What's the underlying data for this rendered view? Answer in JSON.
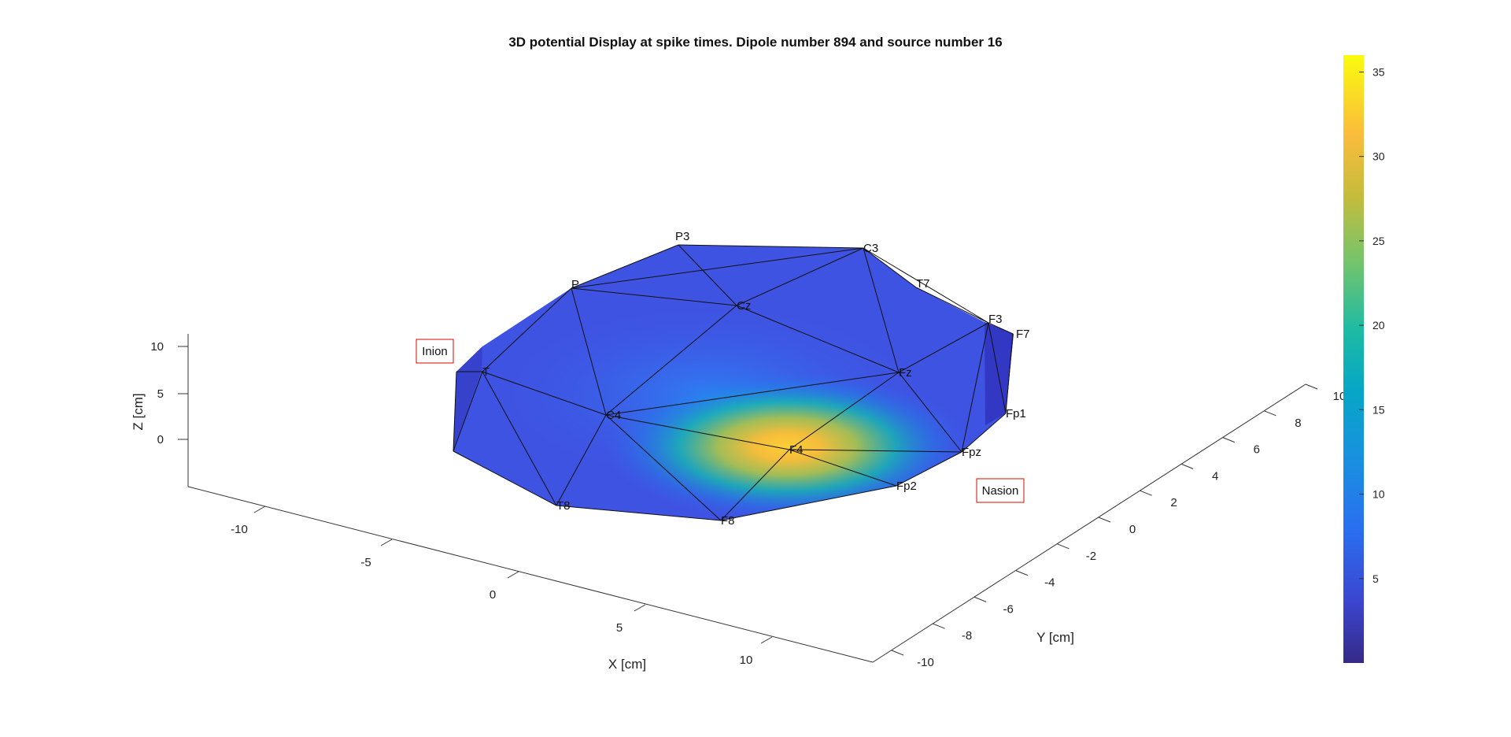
{
  "chart_data": {
    "type": "surface3d",
    "title": "3D potential Display at spike times. Dipole number 894 and source number 16",
    "xlabel": "X [cm]",
    "ylabel": "Y [cm]",
    "zlabel": "Z [cm]",
    "x_ticks": [
      "-10",
      "-5",
      "0",
      "5",
      "10"
    ],
    "y_ticks": [
      "-10",
      "-8",
      "-6",
      "-4",
      "-2",
      "0",
      "2",
      "4",
      "6",
      "8",
      "10"
    ],
    "z_ticks": [
      "10",
      "5",
      "0"
    ],
    "colorbar": {
      "colormap": "parula",
      "ticks": [
        "35",
        "30",
        "25",
        "20",
        "15",
        "10",
        "5"
      ],
      "range": [
        0,
        36
      ]
    },
    "electrodes": [
      {
        "label": "P3",
        "value": 3
      },
      {
        "label": "C3",
        "value": 3
      },
      {
        "label": "T7",
        "value": 2
      },
      {
        "label": "P",
        "value": 3
      },
      {
        "label": "Cz",
        "value": 6
      },
      {
        "label": "F3",
        "value": 3
      },
      {
        "label": "F7",
        "value": 2
      },
      {
        "label": "T",
        "value": 3
      },
      {
        "label": "Fz",
        "value": 9
      },
      {
        "label": "C4",
        "value": 10
      },
      {
        "label": "Fp1",
        "value": 3
      },
      {
        "label": "F4",
        "value": 35
      },
      {
        "label": "Fpz",
        "value": 7
      },
      {
        "label": "Fp2",
        "value": 8
      },
      {
        "label": "T8",
        "value": 3
      },
      {
        "label": "F8",
        "value": 10
      }
    ],
    "landmarks": [
      "Inion",
      "Nasion"
    ]
  }
}
